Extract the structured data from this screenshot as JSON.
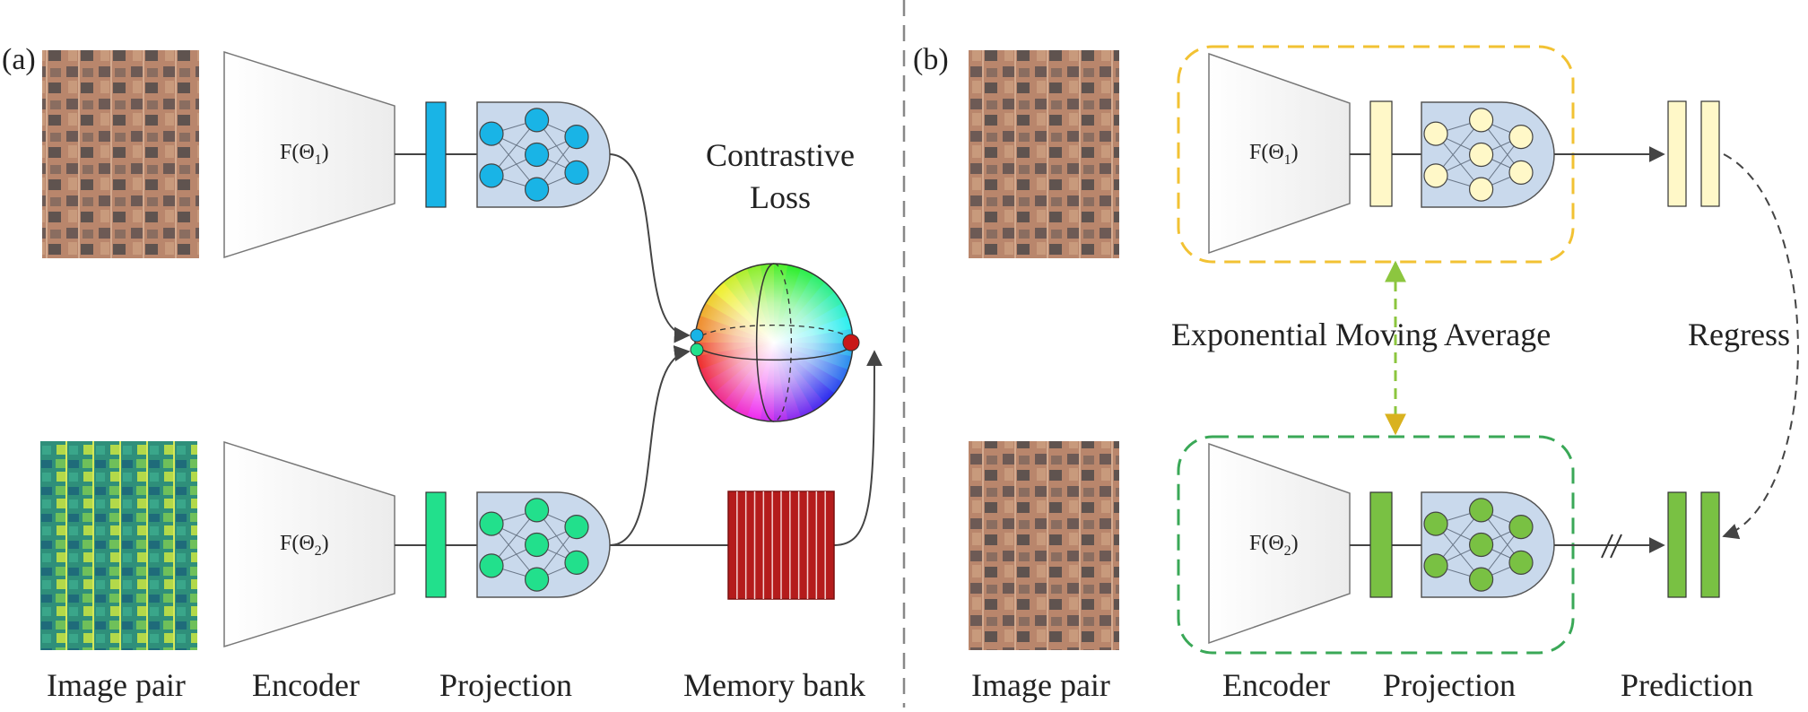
{
  "panels": {
    "a": {
      "label": "(a)",
      "encoder_top": "F(Θ1)",
      "encoder_bottom": "F(Θ2)",
      "loss_line1": "Contrastive",
      "loss_line2": "Loss",
      "captions": [
        "Image pair",
        "Encoder",
        "Projection",
        "Memory bank"
      ]
    },
    "b": {
      "label": "(b)",
      "encoder_top": "F(Θ1)",
      "encoder_bottom": "F(Θ2)",
      "ema": "Exponential Moving Average",
      "regress": "Regress",
      "captions": [
        "Image pair",
        "Encoder",
        "Projection",
        "Prediction"
      ]
    }
  },
  "colors": {
    "proj_blue": "#19b4e6",
    "proj_teal": "#22e08c",
    "proj_cream": "#fff8c8",
    "proj_green": "#79c143",
    "memory_red": "#b41c1c",
    "ema_box": "#f2c233",
    "online_box": "#3aa857",
    "ema_arrow": "#a8d22c",
    "node_panel": "#c9d9ec"
  }
}
